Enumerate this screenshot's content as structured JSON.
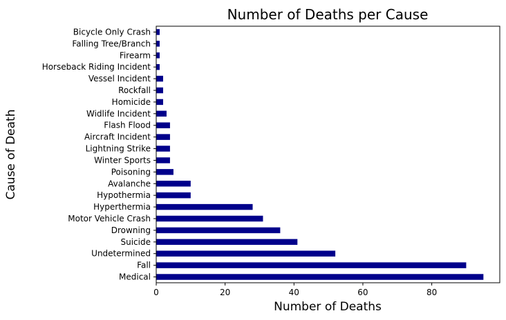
{
  "chart_data": {
    "type": "bar",
    "orientation": "horizontal",
    "title": "Number of Deaths per Cause",
    "xlabel": "Number of Deaths",
    "ylabel": "Cause of Death",
    "categories": [
      "Medical",
      "Fall",
      "Undetermined",
      "Suicide",
      "Drowning",
      "Motor Vehicle Crash",
      "Hyperthermia",
      "Hypothermia",
      "Avalanche",
      "Poisoning",
      "Winter Sports",
      "Lightning Strike",
      "Aircraft Incident",
      "Flash Flood",
      "Widlife Incident ",
      "Homicide",
      "Rockfall",
      "Vessel Incident",
      "Horseback Riding Incident",
      "Firearm",
      "Falling Tree/Branch",
      "Bicycle Only Crash"
    ],
    "values": [
      95,
      90,
      52,
      41,
      36,
      31,
      28,
      10,
      10,
      5,
      4,
      4,
      4,
      4,
      3,
      2,
      2,
      2,
      1,
      1,
      1,
      1
    ],
    "xlim": [
      0,
      99.75
    ],
    "xticks": [
      0,
      20,
      40,
      60,
      80
    ],
    "bar_color": "#00008b",
    "grid": false,
    "legend": "none"
  }
}
